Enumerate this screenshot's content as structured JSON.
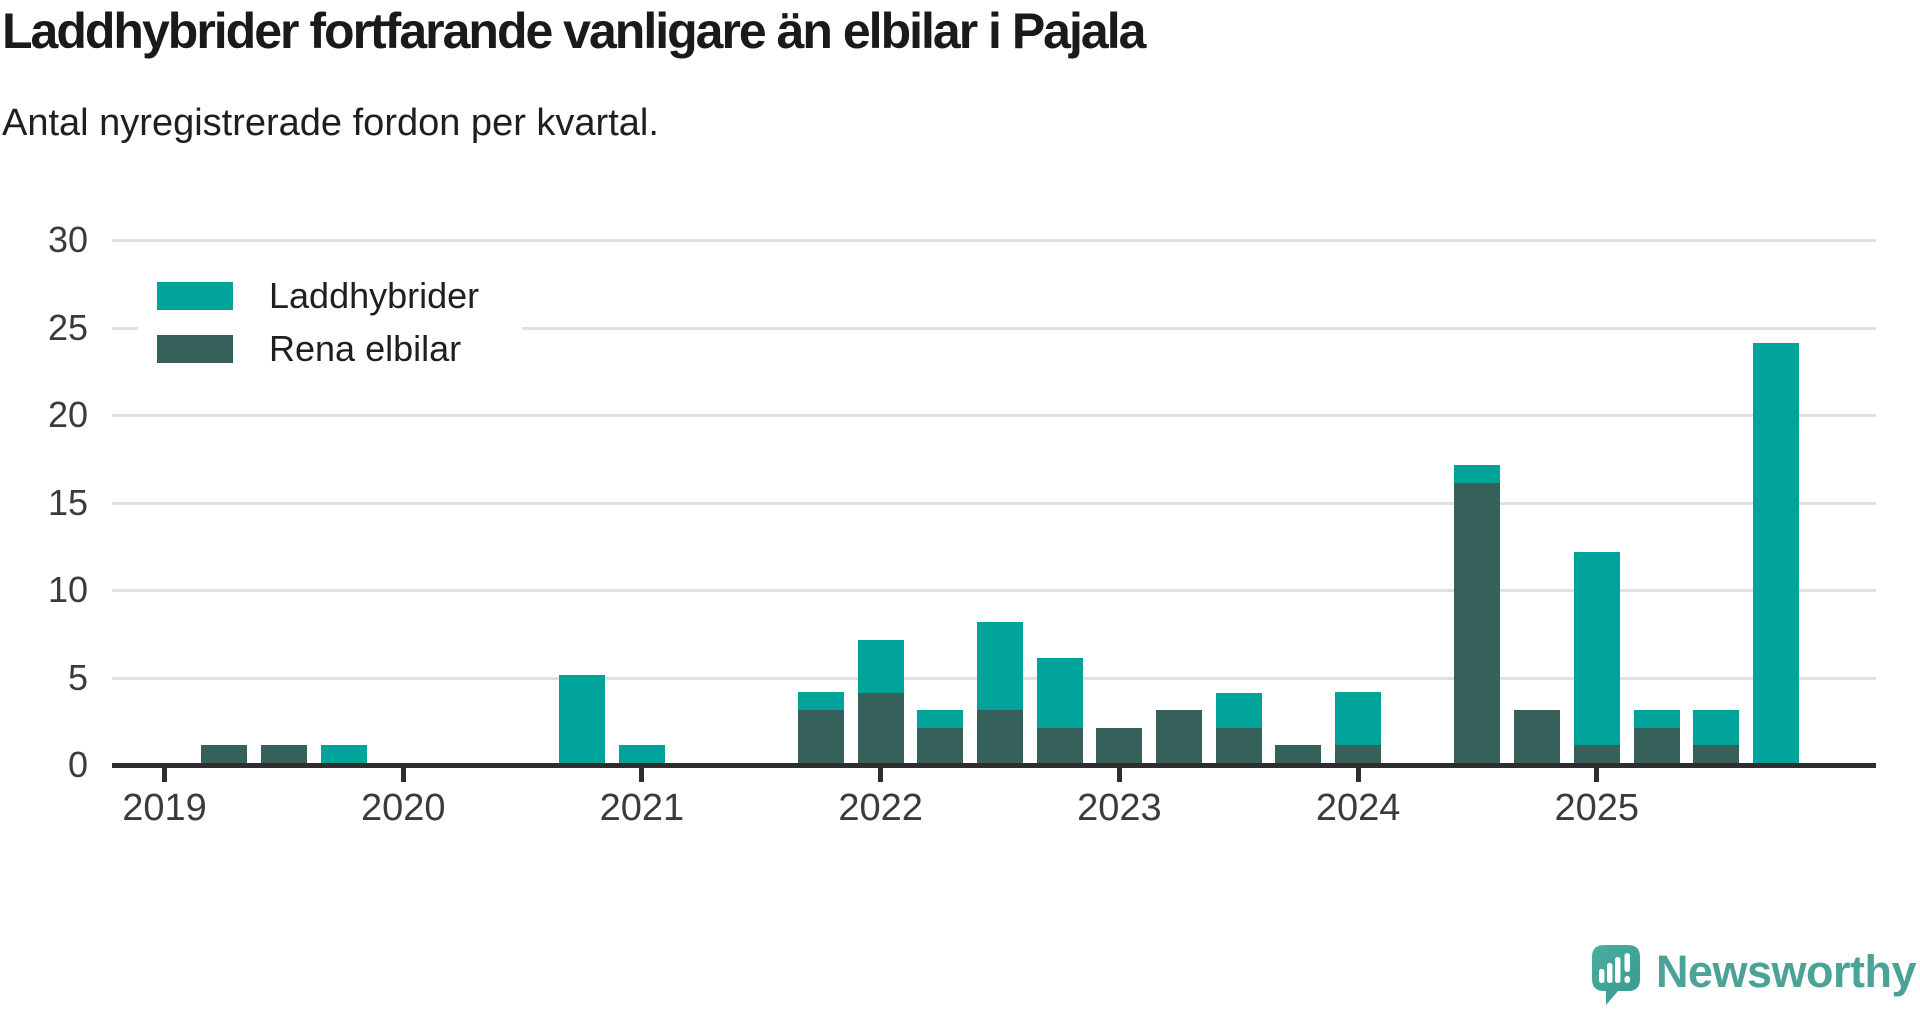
{
  "title": "Laddhybrider fortfarande vanligare än elbilar i Pajala",
  "subtitle": "Antal nyregistrerade fordon per kvartal.",
  "legend": [
    {
      "label": "Laddhybrider",
      "color": "#00a39a"
    },
    {
      "label": "Rena elbilar",
      "color": "#36605a"
    }
  ],
  "colors": {
    "laddhybrider": "#00a39a",
    "rena_elbilar": "#36605a",
    "gridline": "#e0e0e0",
    "axis": "#2e2e2e",
    "axis_text": "#3b3b3b",
    "background": "#ffffff",
    "brand_teal": "#4ba296"
  },
  "branding": {
    "name": "Newsworthy"
  },
  "chart_data": {
    "type": "bar",
    "stacked": true,
    "stack_order": "bottom-to-top",
    "title": "Laddhybrider fortfarande vanligare än elbilar i Pajala",
    "subtitle": "Antal nyregistrerade fordon per kvartal.",
    "xlabel": "",
    "ylabel": "",
    "ylim": [
      0,
      30
    ],
    "yticks": [
      0,
      5,
      10,
      15,
      20,
      25,
      30
    ],
    "grid": true,
    "legend_position": "top-left-inside",
    "x_year_labels": [
      "2019",
      "2020",
      "2021",
      "2022",
      "2023",
      "2024",
      "2025"
    ],
    "categories": [
      "2019 K1",
      "2019 K2",
      "2019 K3",
      "2019 K4",
      "2020 K1",
      "2020 K2",
      "2020 K3",
      "2020 K4",
      "2021 K1",
      "2021 K2",
      "2021 K3",
      "2021 K4",
      "2022 K1",
      "2022 K2",
      "2022 K3",
      "2022 K4",
      "2023 K1",
      "2023 K2",
      "2023 K3",
      "2023 K4",
      "2024 K1",
      "2024 K2",
      "2024 K3",
      "2024 K4",
      "2025 K1",
      "2025 K2",
      "2025 K3",
      "2025 K4"
    ],
    "series": [
      {
        "name": "Rena elbilar",
        "color": "#36605a",
        "values": [
          0,
          1,
          1,
          0,
          0,
          0,
          0,
          0,
          0,
          0,
          0,
          3,
          4,
          2,
          3,
          2,
          2,
          3,
          2,
          1,
          1,
          0,
          16,
          3,
          1,
          2,
          1,
          0
        ]
      },
      {
        "name": "Laddhybrider",
        "color": "#00a39a",
        "values": [
          0,
          0,
          0,
          1,
          0,
          0,
          0,
          5,
          1,
          0,
          0,
          1,
          3,
          1,
          5,
          4,
          0,
          0,
          2,
          0,
          3,
          0,
          1,
          0,
          11,
          1,
          2,
          24
        ]
      }
    ]
  }
}
